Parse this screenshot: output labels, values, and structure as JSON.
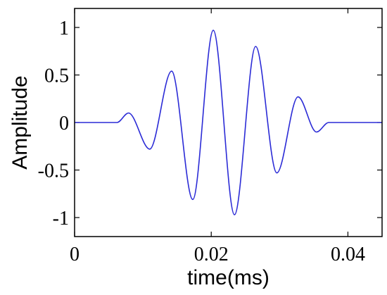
{
  "chart_data": {
    "type": "line",
    "title": "",
    "xlabel": "time(ms)",
    "ylabel": "Amplitude",
    "xlim": [
      0,
      0.045
    ],
    "ylim": [
      -1.2,
      1.2
    ],
    "xticks": [
      0,
      0.02,
      0.04
    ],
    "xtick_labels": [
      "0",
      "0.02",
      "0.04"
    ],
    "yticks": [
      1,
      0.5,
      0,
      -0.5,
      -1
    ],
    "ytick_labels": [
      "1",
      "0.5",
      "0",
      "-0.5",
      "-1"
    ],
    "grid": false,
    "legend": "none",
    "colors": {
      "line": "#2b2bd6",
      "axes": "#000000"
    },
    "series": [
      {
        "name": "",
        "x": [
          0,
          0.0062,
          0.0079,
          0.011,
          0.0142,
          0.0173,
          0.0203,
          0.0234,
          0.0265,
          0.0296,
          0.0327,
          0.0354,
          0.0372,
          0.045
        ],
        "y": [
          0,
          0,
          0.1,
          -0.28,
          0.54,
          -0.81,
          0.97,
          -0.97,
          0.8,
          -0.53,
          0.27,
          -0.1,
          0,
          0
        ]
      }
    ]
  }
}
